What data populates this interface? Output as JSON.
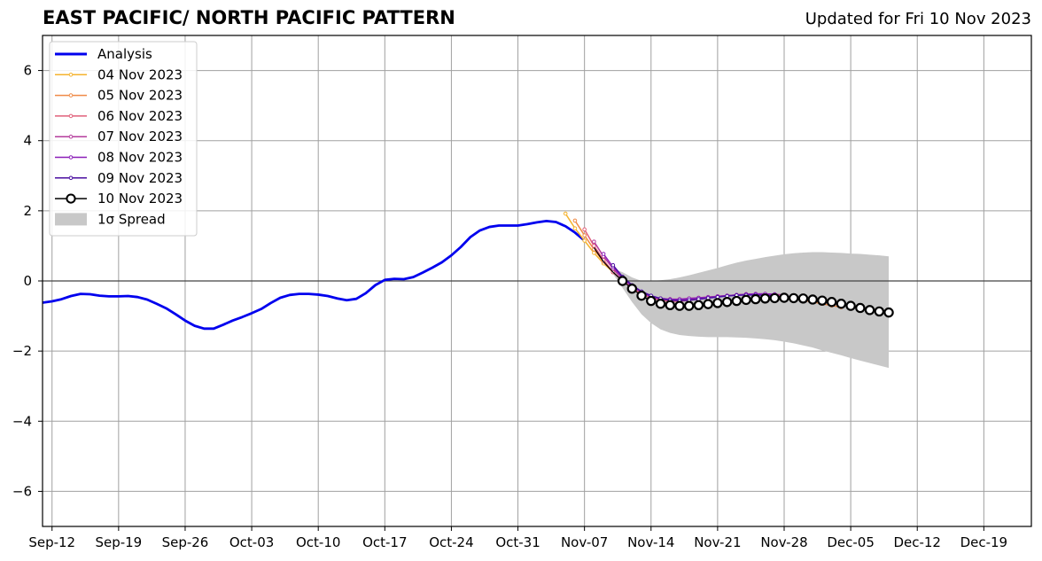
{
  "chart_data": {
    "type": "line",
    "title": "EAST PACIFIC/ NORTH PACIFIC PATTERN",
    "subtitle": "Updated for Fri 10 Nov 2023",
    "xlabel": "",
    "ylabel": "",
    "x_unit": "date",
    "xlim": [
      "2023-09-11",
      "2023-12-24"
    ],
    "ylim": [
      -7,
      7
    ],
    "yticks": [
      -6,
      -4,
      -2,
      0,
      2,
      4,
      6
    ],
    "xticks": [
      "2023-09-12",
      "2023-09-19",
      "2023-09-26",
      "2023-10-03",
      "2023-10-10",
      "2023-10-17",
      "2023-10-24",
      "2023-10-31",
      "2023-11-07",
      "2023-11-14",
      "2023-11-21",
      "2023-11-28",
      "2023-12-05",
      "2023-12-12",
      "2023-12-19"
    ],
    "xtick_labels": [
      "Sep-12",
      "Sep-19",
      "Sep-26",
      "Oct-03",
      "Oct-10",
      "Oct-17",
      "Oct-24",
      "Oct-31",
      "Nov-07",
      "Nov-14",
      "Nov-21",
      "Nov-28",
      "Dec-05",
      "Dec-12",
      "Dec-19"
    ],
    "grid": true,
    "legend_position": "top-left",
    "analysis": {
      "name": "Analysis",
      "color": "#0000ee",
      "x": [
        "2023-09-11",
        "2023-09-12",
        "2023-09-13",
        "2023-09-14",
        "2023-09-15",
        "2023-09-16",
        "2023-09-17",
        "2023-09-18",
        "2023-09-19",
        "2023-09-20",
        "2023-09-21",
        "2023-09-22",
        "2023-09-23",
        "2023-09-24",
        "2023-09-25",
        "2023-09-26",
        "2023-09-27",
        "2023-09-28",
        "2023-09-29",
        "2023-09-30",
        "2023-10-01",
        "2023-10-02",
        "2023-10-03",
        "2023-10-04",
        "2023-10-05",
        "2023-10-06",
        "2023-10-07",
        "2023-10-08",
        "2023-10-09",
        "2023-10-10",
        "2023-10-11",
        "2023-10-12",
        "2023-10-13",
        "2023-10-14",
        "2023-10-15",
        "2023-10-16",
        "2023-10-17",
        "2023-10-18",
        "2023-10-19",
        "2023-10-20",
        "2023-10-21",
        "2023-10-22",
        "2023-10-23",
        "2023-10-24",
        "2023-10-25",
        "2023-10-26",
        "2023-10-27",
        "2023-10-28",
        "2023-10-29",
        "2023-10-30",
        "2023-10-31",
        "2023-11-01",
        "2023-11-02",
        "2023-11-03",
        "2023-11-04",
        "2023-11-05",
        "2023-11-06",
        "2023-11-07"
      ],
      "y": [
        -0.62,
        -0.58,
        -0.52,
        -0.43,
        -0.37,
        -0.38,
        -0.42,
        -0.44,
        -0.44,
        -0.43,
        -0.46,
        -0.53,
        -0.65,
        -0.78,
        -0.95,
        -1.13,
        -1.28,
        -1.36,
        -1.36,
        -1.25,
        -1.13,
        -1.03,
        -0.92,
        -0.8,
        -0.63,
        -0.48,
        -0.4,
        -0.37,
        -0.37,
        -0.39,
        -0.43,
        -0.5,
        -0.55,
        -0.51,
        -0.35,
        -0.12,
        0.03,
        0.06,
        0.05,
        0.11,
        0.24,
        0.38,
        0.53,
        0.73,
        0.97,
        1.25,
        1.44,
        1.54,
        1.58,
        1.58,
        1.58,
        1.62,
        1.67,
        1.71,
        1.68,
        1.56,
        1.38,
        1.15
      ]
    },
    "forecasts": [
      {
        "name": "04 Nov 2023",
        "color": "#f5b32e",
        "x": [
          "2023-11-05",
          "2023-11-06",
          "2023-11-07",
          "2023-11-08",
          "2023-11-09",
          "2023-11-10"
        ],
        "y": [
          1.92,
          1.5,
          1.15,
          0.8,
          0.5,
          0.25
        ]
      },
      {
        "name": "05 Nov 2023",
        "color": "#ef8a46",
        "x": [
          "2023-11-06",
          "2023-11-07",
          "2023-11-08",
          "2023-11-09",
          "2023-11-10",
          "2023-11-11",
          "2023-11-12",
          "2023-11-13",
          "2023-11-14",
          "2023-11-15",
          "2023-11-16",
          "2023-11-17",
          "2023-11-18",
          "2023-11-19",
          "2023-11-20",
          "2023-11-21",
          "2023-11-22",
          "2023-11-23",
          "2023-11-24",
          "2023-11-25",
          "2023-11-26",
          "2023-11-27",
          "2023-11-28",
          "2023-11-29",
          "2023-11-30",
          "2023-12-01",
          "2023-12-02",
          "2023-12-03",
          "2023-12-04"
        ],
        "y": [
          1.72,
          1.3,
          0.9,
          0.55,
          0.25,
          0.0,
          -0.2,
          -0.35,
          -0.45,
          -0.5,
          -0.52,
          -0.52,
          -0.5,
          -0.48,
          -0.46,
          -0.44,
          -0.42,
          -0.4,
          -0.38,
          -0.38,
          -0.4,
          -0.42,
          -0.45,
          -0.5,
          -0.55,
          -0.6,
          -0.65,
          -0.7,
          -0.75
        ]
      },
      {
        "name": "06 Nov 2023",
        "color": "#e0607a",
        "x": [
          "2023-11-07",
          "2023-11-08",
          "2023-11-09",
          "2023-11-10",
          "2023-11-11",
          "2023-11-12",
          "2023-11-13",
          "2023-11-14",
          "2023-11-15",
          "2023-11-16",
          "2023-11-17",
          "2023-11-18",
          "2023-11-19",
          "2023-11-20",
          "2023-11-21",
          "2023-11-22",
          "2023-11-23",
          "2023-11-24",
          "2023-11-25",
          "2023-11-26",
          "2023-11-27",
          "2023-11-28",
          "2023-11-29",
          "2023-11-30",
          "2023-12-01",
          "2023-12-02",
          "2023-12-03",
          "2023-12-04"
        ],
        "y": [
          1.47,
          1.0,
          0.6,
          0.25,
          0.0,
          -0.2,
          -0.38,
          -0.48,
          -0.55,
          -0.58,
          -0.58,
          -0.55,
          -0.52,
          -0.48,
          -0.45,
          -0.42,
          -0.4,
          -0.38,
          -0.38,
          -0.4,
          -0.42,
          -0.45,
          -0.48,
          -0.52,
          -0.56,
          -0.6,
          -0.64,
          -0.68
        ]
      },
      {
        "name": "07 Nov 2023",
        "color": "#b43c9c",
        "x": [
          "2023-11-08",
          "2023-11-09",
          "2023-11-10",
          "2023-11-11",
          "2023-11-12",
          "2023-11-13",
          "2023-11-14",
          "2023-11-15",
          "2023-11-16",
          "2023-11-17",
          "2023-11-18",
          "2023-11-19",
          "2023-11-20",
          "2023-11-21",
          "2023-11-22",
          "2023-11-23",
          "2023-11-24",
          "2023-11-25",
          "2023-11-26",
          "2023-11-27",
          "2023-11-28"
        ],
        "y": [
          1.12,
          0.7,
          0.35,
          0.05,
          -0.15,
          -0.32,
          -0.45,
          -0.52,
          -0.55,
          -0.55,
          -0.52,
          -0.5,
          -0.47,
          -0.44,
          -0.42,
          -0.4,
          -0.38,
          -0.37,
          -0.37,
          -0.38,
          -0.4
        ]
      },
      {
        "name": "08 Nov 2023",
        "color": "#8b1fb8",
        "x": [
          "2023-11-09",
          "2023-11-10",
          "2023-11-11",
          "2023-11-12",
          "2023-11-13",
          "2023-11-14",
          "2023-11-15",
          "2023-11-16",
          "2023-11-17",
          "2023-11-18",
          "2023-11-19",
          "2023-11-20",
          "2023-11-21",
          "2023-11-22",
          "2023-11-23",
          "2023-11-24",
          "2023-11-25",
          "2023-11-26",
          "2023-11-27"
        ],
        "y": [
          0.77,
          0.4,
          0.1,
          -0.15,
          -0.32,
          -0.45,
          -0.5,
          -0.52,
          -0.52,
          -0.5,
          -0.48,
          -0.46,
          -0.44,
          -0.42,
          -0.4,
          -0.38,
          -0.37,
          -0.37,
          -0.38
        ]
      },
      {
        "name": "09 Nov 2023",
        "color": "#4a0ea0",
        "x": [
          "2023-11-10",
          "2023-11-11",
          "2023-11-12",
          "2023-11-13",
          "2023-11-14",
          "2023-11-15",
          "2023-11-16",
          "2023-11-17",
          "2023-11-18",
          "2023-11-19",
          "2023-11-20",
          "2023-11-21",
          "2023-11-22",
          "2023-11-23",
          "2023-11-24",
          "2023-11-25",
          "2023-11-26",
          "2023-11-27"
        ],
        "y": [
          0.45,
          0.12,
          -0.12,
          -0.3,
          -0.42,
          -0.5,
          -0.55,
          -0.56,
          -0.55,
          -0.52,
          -0.49,
          -0.46,
          -0.43,
          -0.41,
          -0.4,
          -0.4,
          -0.41,
          -0.42
        ]
      },
      {
        "name": "10 Nov 2023",
        "color": "#000000",
        "x": [
          "2023-11-08",
          "2023-11-09",
          "2023-11-10",
          "2023-11-11",
          "2023-11-12",
          "2023-11-13",
          "2023-11-14",
          "2023-11-15",
          "2023-11-16",
          "2023-11-17",
          "2023-11-18",
          "2023-11-19",
          "2023-11-20",
          "2023-11-21",
          "2023-11-22",
          "2023-11-23",
          "2023-11-24",
          "2023-11-25",
          "2023-11-26",
          "2023-11-27",
          "2023-11-28",
          "2023-11-29",
          "2023-11-30",
          "2023-12-01",
          "2023-12-02",
          "2023-12-03",
          "2023-12-04",
          "2023-12-05",
          "2023-12-06",
          "2023-12-07",
          "2023-12-08",
          "2023-12-09"
        ],
        "y": [
          0.95,
          0.55,
          0.25,
          0.0,
          -0.22,
          -0.42,
          -0.57,
          -0.65,
          -0.69,
          -0.71,
          -0.71,
          -0.69,
          -0.66,
          -0.63,
          -0.6,
          -0.57,
          -0.54,
          -0.52,
          -0.5,
          -0.49,
          -0.48,
          -0.49,
          -0.5,
          -0.53,
          -0.56,
          -0.6,
          -0.65,
          -0.71,
          -0.77,
          -0.83,
          -0.87,
          -0.9
        ],
        "markers_from": "2023-11-11"
      }
    ],
    "spread": {
      "name": "1σ Spread",
      "color": "#c8c8c8",
      "x": [
        "2023-11-10",
        "2023-11-11",
        "2023-11-12",
        "2023-11-13",
        "2023-11-14",
        "2023-11-15",
        "2023-11-16",
        "2023-11-17",
        "2023-11-18",
        "2023-11-19",
        "2023-11-20",
        "2023-11-21",
        "2023-11-22",
        "2023-11-23",
        "2023-11-24",
        "2023-11-25",
        "2023-11-26",
        "2023-11-27",
        "2023-11-28",
        "2023-11-29",
        "2023-11-30",
        "2023-12-01",
        "2023-12-02",
        "2023-12-03",
        "2023-12-04",
        "2023-12-05",
        "2023-12-06",
        "2023-12-07",
        "2023-12-08",
        "2023-12-09"
      ],
      "upper": [
        0.35,
        0.25,
        0.1,
        0.0,
        0.0,
        0.02,
        0.05,
        0.1,
        0.16,
        0.23,
        0.3,
        0.37,
        0.45,
        0.52,
        0.58,
        0.63,
        0.68,
        0.72,
        0.76,
        0.79,
        0.81,
        0.82,
        0.82,
        0.81,
        0.8,
        0.78,
        0.77,
        0.75,
        0.73,
        0.7
      ],
      "lower": [
        0.2,
        -0.2,
        -0.6,
        -0.95,
        -1.2,
        -1.38,
        -1.48,
        -1.54,
        -1.57,
        -1.59,
        -1.6,
        -1.6,
        -1.6,
        -1.61,
        -1.62,
        -1.64,
        -1.66,
        -1.69,
        -1.73,
        -1.78,
        -1.84,
        -1.9,
        -1.98,
        -2.05,
        -2.12,
        -2.2,
        -2.27,
        -2.34,
        -2.41,
        -2.48
      ]
    }
  }
}
